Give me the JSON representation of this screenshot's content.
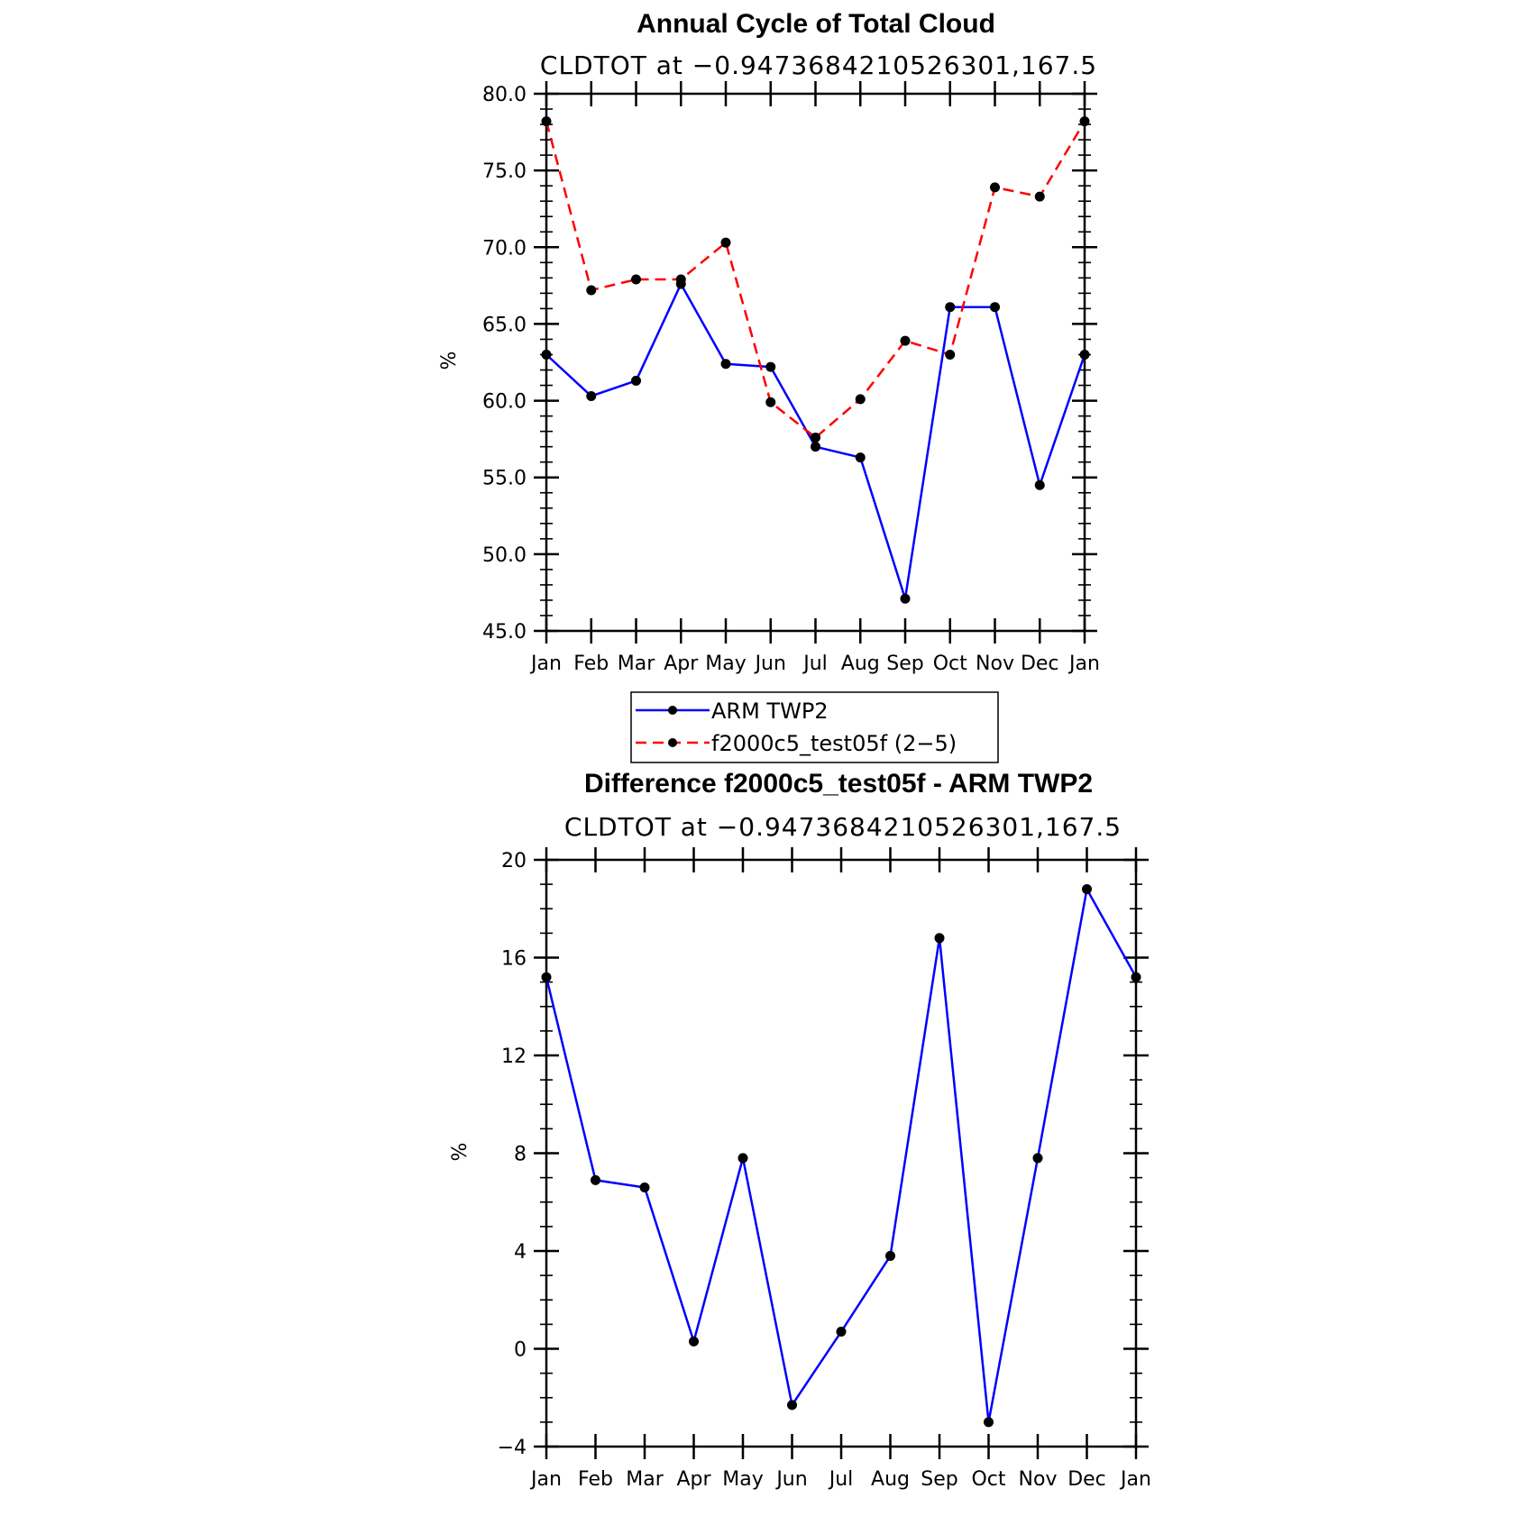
{
  "chart_data": [
    {
      "type": "line",
      "title": "Annual Cycle of Total Cloud",
      "subtitle": "CLDTOT at −0.9473684210526301,167.5",
      "xlabel": "",
      "ylabel": "%",
      "categories": [
        "Jan",
        "Feb",
        "Mar",
        "Apr",
        "May",
        "Jun",
        "Jul",
        "Aug",
        "Sep",
        "Oct",
        "Nov",
        "Dec",
        "Jan"
      ],
      "ylim": [
        45,
        80
      ],
      "yticks": [
        "45.0",
        "50.0",
        "55.0",
        "60.0",
        "65.0",
        "70.0",
        "75.0",
        "80.0"
      ],
      "series": [
        {
          "name": "ARM TWP2",
          "color": "#0000ff",
          "style": "solid",
          "values": [
            63.0,
            60.3,
            61.3,
            67.6,
            62.4,
            62.2,
            57.0,
            56.3,
            47.1,
            66.1,
            66.1,
            54.5,
            63.0
          ]
        },
        {
          "name": "f2000c5_test05f (2−5)",
          "color": "#ff0000",
          "style": "dashed",
          "values": [
            78.2,
            67.2,
            67.9,
            67.9,
            70.3,
            59.9,
            57.6,
            60.1,
            63.9,
            63.0,
            73.9,
            73.3,
            78.2
          ]
        }
      ],
      "legend": "bottom-center"
    },
    {
      "type": "line",
      "title": "Difference f2000c5_test05f - ARM TWP2",
      "subtitle": "CLDTOT at −0.9473684210526301,167.5",
      "xlabel": "",
      "ylabel": "%",
      "categories": [
        "Jan",
        "Feb",
        "Mar",
        "Apr",
        "May",
        "Jun",
        "Jul",
        "Aug",
        "Sep",
        "Oct",
        "Nov",
        "Dec",
        "Jan"
      ],
      "ylim": [
        -4,
        20
      ],
      "yticks": [
        "−4",
        "0",
        "4",
        "8",
        "12",
        "16",
        "20"
      ],
      "series": [
        {
          "color": "#0000ff",
          "style": "solid",
          "values": [
            15.2,
            6.9,
            6.6,
            0.3,
            7.8,
            -2.3,
            0.7,
            3.8,
            16.8,
            -3.0,
            7.8,
            18.8,
            15.2
          ]
        }
      ]
    }
  ]
}
